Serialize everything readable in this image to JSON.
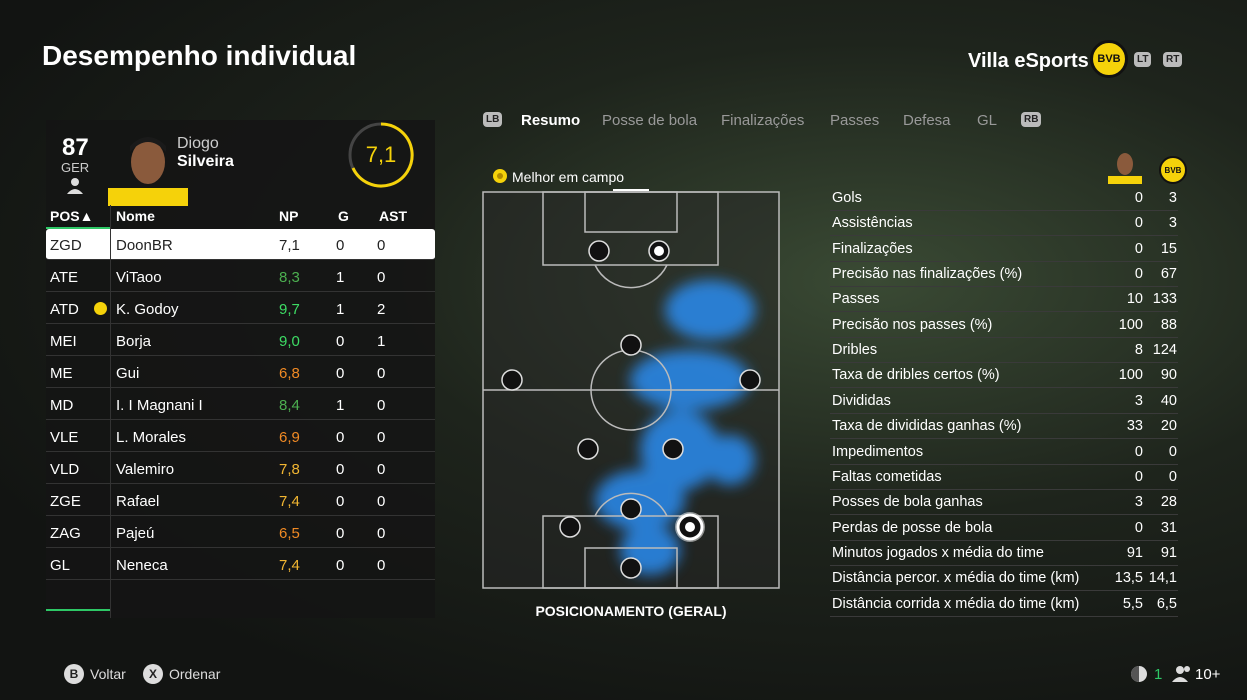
{
  "header": {
    "title": "Desempenho individual",
    "team": "Villa eSports",
    "team_badge": "BVB",
    "buttons": [
      "LT",
      "RT"
    ]
  },
  "player": {
    "overall": "87",
    "position": "GER",
    "first_name": "Diogo",
    "last_name": "Silveira",
    "rating": "7,1"
  },
  "table": {
    "columns": [
      "POS▲",
      "Nome",
      "NP",
      "G",
      "AST"
    ],
    "rows": [
      {
        "pos": "ZGD",
        "name": "DoonBR",
        "np": "7,1",
        "np_color": "#222222",
        "g": "0",
        "ast": "0",
        "selected": true
      },
      {
        "pos": "ATE",
        "name": "ViTaoo",
        "np": "8,3",
        "np_color": "#4caf50",
        "g": "1",
        "ast": "0"
      },
      {
        "pos": "ATD",
        "name": "K. Godoy",
        "np": "9,7",
        "np_color": "#3ddc64",
        "g": "1",
        "ast": "2",
        "best": true
      },
      {
        "pos": "MEI",
        "name": "Borja",
        "np": "9,0",
        "np_color": "#3ddc64",
        "g": "0",
        "ast": "1"
      },
      {
        "pos": "ME",
        "name": "Gui",
        "np": "6,8",
        "np_color": "#f08a24",
        "g": "0",
        "ast": "0"
      },
      {
        "pos": "MD",
        "name": "I. I Magnani I",
        "np": "8,4",
        "np_color": "#4caf50",
        "g": "1",
        "ast": "0"
      },
      {
        "pos": "VLE",
        "name": "L. Morales",
        "np": "6,9",
        "np_color": "#f08a24",
        "g": "0",
        "ast": "0"
      },
      {
        "pos": "VLD",
        "name": "Valemiro",
        "np": "7,8",
        "np_color": "#f2b632",
        "g": "0",
        "ast": "0"
      },
      {
        "pos": "ZGE",
        "name": "Rafael",
        "np": "7,4",
        "np_color": "#f2b632",
        "g": "0",
        "ast": "0"
      },
      {
        "pos": "ZAG",
        "name": "Pajeú",
        "np": "6,5",
        "np_color": "#f08a24",
        "g": "0",
        "ast": "0"
      },
      {
        "pos": "GL",
        "name": "Neneca",
        "np": "7,4",
        "np_color": "#f2b632",
        "g": "0",
        "ast": "0"
      }
    ]
  },
  "tabs": {
    "left_button": "LB",
    "items": [
      "Resumo",
      "Posse de bola",
      "Finalizações",
      "Passes",
      "Defesa",
      "GL"
    ],
    "active": 0,
    "right_button": "RB"
  },
  "pitch": {
    "label": "Melhor em campo",
    "caption": "POSICIONAMENTO (GERAL)"
  },
  "stats": {
    "rows": [
      [
        "Gols",
        "0",
        "3"
      ],
      [
        "Assistências",
        "0",
        "3"
      ],
      [
        "Finalizações",
        "0",
        "15"
      ],
      [
        "Precisão nas finalizações (%)",
        "0",
        "67"
      ],
      [
        "Passes",
        "10",
        "133"
      ],
      [
        "Precisão nos passes (%)",
        "100",
        "88"
      ],
      [
        "Dribles",
        "8",
        "124"
      ],
      [
        "Taxa de dribles certos (%)",
        "100",
        "90"
      ],
      [
        "Divididas",
        "3",
        "40"
      ],
      [
        "Taxa de divididas ganhas (%)",
        "33",
        "20"
      ],
      [
        "Impedimentos",
        "0",
        "0"
      ],
      [
        "Faltas cometidas",
        "0",
        "0"
      ],
      [
        "Posses de bola ganhas",
        "3",
        "28"
      ],
      [
        "Perdas de posse de bola",
        "0",
        "31"
      ],
      [
        "Minutos jogados x média do time",
        "91",
        "91"
      ],
      [
        "Distância percor. x média do time (km)",
        "13,5",
        "14,1"
      ],
      [
        "Distância corrida x média do time (km)",
        "5,5",
        "6,5"
      ]
    ]
  },
  "footer": {
    "back_button": "B",
    "back": "Voltar",
    "sort_button": "X",
    "sort": "Ordenar",
    "count": "1",
    "players": "10+"
  }
}
